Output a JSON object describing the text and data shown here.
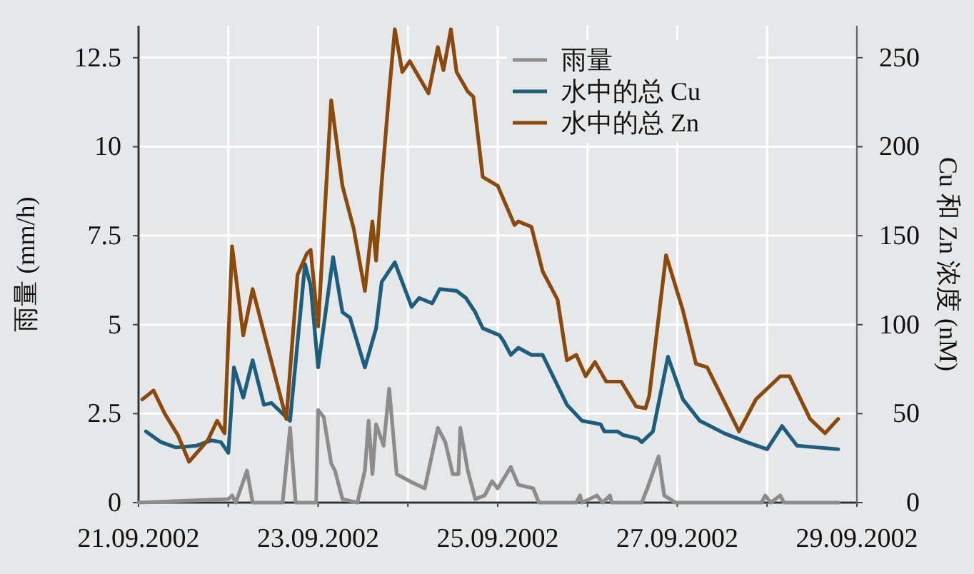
{
  "chart_data": {
    "type": "line",
    "ylabel": "雨量 (mm/h)",
    "y2label": "Cu 和 Zn 浓度 (nM)",
    "xlim": [
      "2002-09-21",
      "2002-09-29"
    ],
    "xticks": [
      {
        "value": "2002-09-21",
        "label": "21.09.2002"
      },
      {
        "value": "2002-09-22",
        "label": null
      },
      {
        "value": "2002-09-23",
        "label": "23.09.2002"
      },
      {
        "value": "2002-09-24",
        "label": null
      },
      {
        "value": "2002-09-25",
        "label": "25.09.2002"
      },
      {
        "value": "2002-09-26",
        "label": null
      },
      {
        "value": "2002-09-27",
        "label": "27.09.2002"
      },
      {
        "value": "2002-09-28",
        "label": null
      },
      {
        "value": "2002-09-29",
        "label": "29.09.2002"
      }
    ],
    "ylim": [
      0,
      13.4
    ],
    "yticks": [
      0,
      2.5,
      5,
      7.5,
      10,
      12.5
    ],
    "y2lim": [
      0,
      268
    ],
    "y2ticks": [
      0,
      50,
      100,
      150,
      200,
      250
    ],
    "grid": true,
    "legend": "top right",
    "series": [
      {
        "name": "雨量",
        "color": "#8c8c8c",
        "x": [
          "2002-09-21T00:00",
          "2002-09-22T00:00",
          "2002-09-22T01:00",
          "2002-09-22T02:00",
          "2002-09-22T05:00",
          "2002-09-22T06:30",
          "2002-09-22T14:30",
          "2002-09-22T16:30",
          "2002-09-22T18:00",
          "2002-09-22T23:30",
          "2002-09-23T00:00",
          "2002-09-23T01:30",
          "2002-09-23T03:30",
          "2002-09-23T04:30",
          "2002-09-23T06:30",
          "2002-09-23T10:30",
          "2002-09-23T12:30",
          "2002-09-23T13:30",
          "2002-09-23T14:30",
          "2002-09-23T15:30",
          "2002-09-23T17:30",
          "2002-09-23T19:00",
          "2002-09-23T21:00",
          "2002-09-24T00:30",
          "2002-09-24T04:30",
          "2002-09-24T08:00",
          "2002-09-24T10:00",
          "2002-09-24T12:00",
          "2002-09-24T13:30",
          "2002-09-24T14:00",
          "2002-09-24T16:00",
          "2002-09-24T18:00",
          "2002-09-24T20:30",
          "2002-09-24T22:30",
          "2002-09-25T00:00",
          "2002-09-25T03:30",
          "2002-09-25T05:30",
          "2002-09-25T09:30",
          "2002-09-25T11:00",
          "2002-09-25T21:00",
          "2002-09-25T22:00",
          "2002-09-25T22:30",
          "2002-09-26T02:30",
          "2002-09-26T04:00",
          "2002-09-26T06:00",
          "2002-09-26T06:30",
          "2002-09-26T14:30",
          "2002-09-26T16:00",
          "2002-09-26T19:00",
          "2002-09-26T20:30",
          "2002-09-26T23:30",
          "2002-09-27T22:30",
          "2002-09-27T23:30",
          "2002-09-28T01:00",
          "2002-09-28T03:30",
          "2002-09-28T04:30",
          "2002-09-28T19:00"
        ],
        "values": [
          0,
          0.1,
          0.2,
          0,
          0.9,
          0,
          0,
          2.1,
          0,
          0,
          2.6,
          2.4,
          1.1,
          0.9,
          0.1,
          0,
          0.9,
          2.3,
          0.8,
          2.2,
          1.6,
          3.2,
          0.8,
          0.6,
          0.4,
          2.1,
          1.7,
          0.8,
          0.8,
          2.1,
          0.9,
          0.1,
          0.2,
          0.6,
          0.4,
          1.0,
          0.5,
          0.4,
          0,
          0,
          0.2,
          0,
          0.2,
          0,
          0.2,
          0,
          0,
          0.4,
          1.3,
          0.2,
          0,
          0,
          0.2,
          0,
          0.2,
          0,
          0
        ]
      },
      {
        "name": "水中的总 Cu",
        "color": "#1b5e7e",
        "axis": "y2",
        "x": [
          "2002-09-21T02:00",
          "2002-09-21T06:00",
          "2002-09-21T10:00",
          "2002-09-21T15:30",
          "2002-09-21T19:30",
          "2002-09-21T22:00",
          "2002-09-22T00:00",
          "2002-09-22T01:30",
          "2002-09-22T04:00",
          "2002-09-22T06:30",
          "2002-09-22T09:30",
          "2002-09-22T11:30",
          "2002-09-22T16:30",
          "2002-09-22T20:30",
          "2002-09-22T22:00",
          "2002-09-23T00:00",
          "2002-09-23T04:00",
          "2002-09-23T06:30",
          "2002-09-23T08:30",
          "2002-09-23T12:30",
          "2002-09-23T15:30",
          "2002-09-23T17:00",
          "2002-09-23T20:30",
          "2002-09-24T01:00",
          "2002-09-24T03:00",
          "2002-09-24T06:30",
          "2002-09-24T08:30",
          "2002-09-24T13:00",
          "2002-09-24T15:30",
          "2002-09-24T18:00",
          "2002-09-24T20:00",
          "2002-09-25T00:30",
          "2002-09-25T01:30",
          "2002-09-25T03:30",
          "2002-09-25T05:30",
          "2002-09-25T09:00",
          "2002-09-25T12:00",
          "2002-09-25T18:30",
          "2002-09-25T22:30",
          "2002-09-26T03:30",
          "2002-09-26T04:30",
          "2002-09-26T08:00",
          "2002-09-26T09:30",
          "2002-09-26T13:30",
          "2002-09-26T14:30",
          "2002-09-26T17:30",
          "2002-09-26T21:30",
          "2002-09-27T01:30",
          "2002-09-27T06:00",
          "2002-09-27T12:30",
          "2002-09-27T18:30",
          "2002-09-28T00:00",
          "2002-09-28T04:00",
          "2002-09-28T08:00",
          "2002-09-28T19:00"
        ],
        "values": [
          40,
          34,
          31,
          32,
          35,
          34,
          28,
          76,
          59,
          80,
          55,
          56,
          46,
          134,
          122,
          76,
          138,
          107,
          104,
          76,
          98,
          124,
          135,
          110,
          115,
          112,
          120,
          119,
          115,
          107,
          98,
          94,
          91,
          83,
          87,
          83,
          83,
          55,
          46,
          44,
          40,
          40,
          38,
          36,
          34,
          40,
          82,
          58,
          46,
          39,
          34,
          30,
          43,
          32,
          30
        ]
      },
      {
        "name": "水中的总 Zn",
        "color": "#8b4a0c",
        "axis": "y2",
        "x": [
          "2002-09-21T01:00",
          "2002-09-21T04:00",
          "2002-09-21T07:00",
          "2002-09-21T10:30",
          "2002-09-21T13:30",
          "2002-09-21T18:30",
          "2002-09-21T21:00",
          "2002-09-21T23:00",
          "2002-09-22T01:00",
          "2002-09-22T04:00",
          "2002-09-22T06:30",
          "2002-09-22T15:30",
          "2002-09-22T18:30",
          "2002-09-22T21:00",
          "2002-09-22T22:00",
          "2002-09-23T00:00",
          "2002-09-23T03:30",
          "2002-09-23T06:30",
          "2002-09-23T09:30",
          "2002-09-23T12:30",
          "2002-09-23T14:30",
          "2002-09-23T15:30",
          "2002-09-23T17:00",
          "2002-09-23T19:00",
          "2002-09-23T20:30",
          "2002-09-23T22:30",
          "2002-09-24T00:30",
          "2002-09-24T05:30",
          "2002-09-24T08:00",
          "2002-09-24T09:30",
          "2002-09-24T11:30",
          "2002-09-24T13:00",
          "2002-09-24T16:00",
          "2002-09-24T17:30",
          "2002-09-24T20:00",
          "2002-09-25T00:00",
          "2002-09-25T04:30",
          "2002-09-25T05:30",
          "2002-09-25T09:00",
          "2002-09-25T12:00",
          "2002-09-25T16:00",
          "2002-09-25T18:30",
          "2002-09-25T21:00",
          "2002-09-25T23:30",
          "2002-09-26T02:00",
          "2002-09-26T05:00",
          "2002-09-26T09:00",
          "2002-09-26T13:00",
          "2002-09-26T15:30",
          "2002-09-26T16:30",
          "2002-09-26T21:00",
          "2002-09-27T01:30",
          "2002-09-27T05:00",
          "2002-09-27T08:00",
          "2002-09-27T16:30",
          "2002-09-27T21:00",
          "2002-09-28T03:30",
          "2002-09-28T06:00",
          "2002-09-28T11:30",
          "2002-09-28T15:30",
          "2002-09-28T19:00"
        ],
        "values": [
          58,
          63,
          50,
          38,
          23,
          35,
          46,
          39,
          144,
          94,
          120,
          47,
          128,
          140,
          142,
          99,
          226,
          178,
          154,
          119,
          158,
          136,
          180,
          231,
          266,
          242,
          248,
          230,
          256,
          243,
          266,
          242,
          231,
          228,
          183,
          178,
          156,
          158,
          155,
          130,
          114,
          80,
          83,
          71,
          79,
          68,
          68,
          54,
          53,
          60,
          139,
          108,
          78,
          76,
          40,
          58,
          71,
          71,
          47,
          39,
          47
        ]
      }
    ]
  }
}
